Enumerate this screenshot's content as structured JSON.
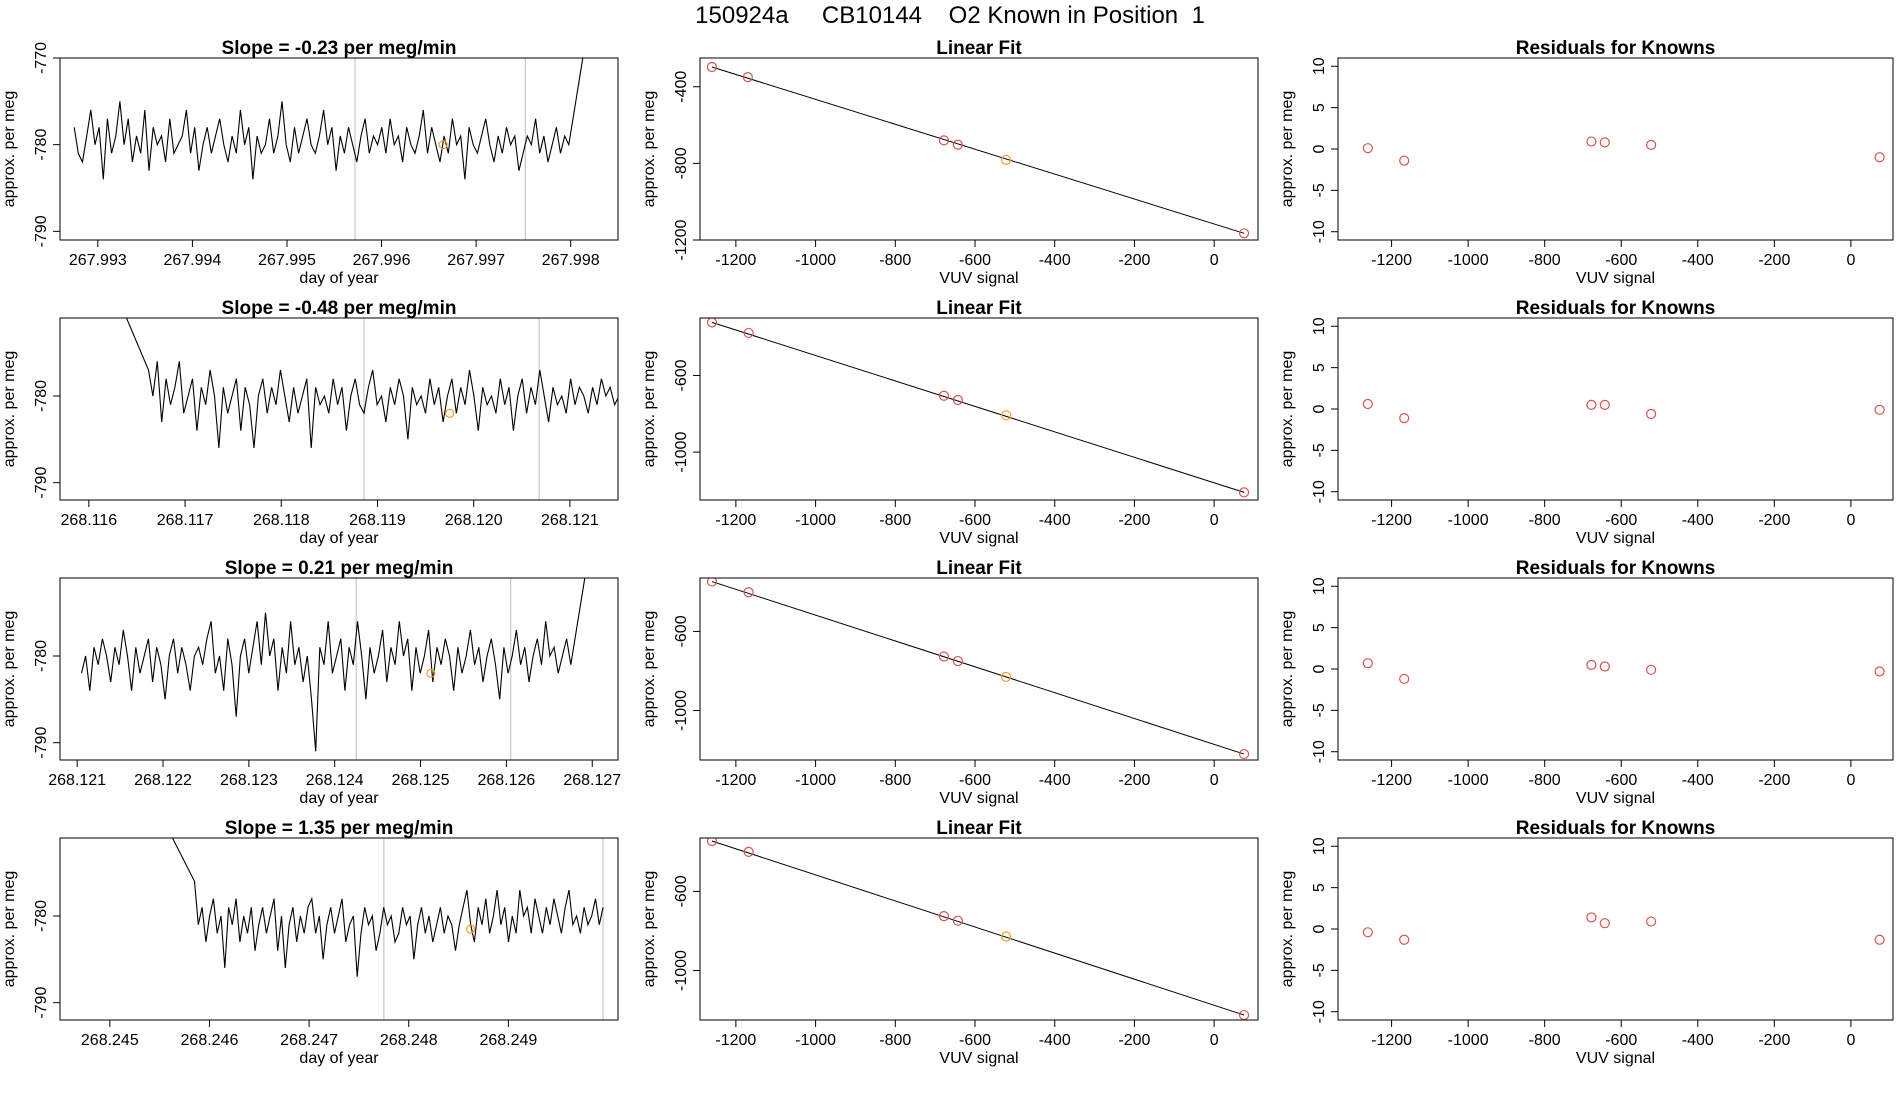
{
  "figure": {
    "title": "150924a     CB10144    O2 Known in Position  1",
    "colors": {
      "line": "#000000",
      "fit_point": "#d9534f",
      "highlight_point": "#f0a020",
      "vline": "#c8c8c8"
    }
  },
  "chart_data": [
    {
      "type": "line",
      "title": "Slope =  -0.23  per meg/min",
      "xlabel": "day of year",
      "ylabel": "approx. per meg",
      "xlim": [
        267.9926,
        267.9985
      ],
      "ylim": [
        -791,
        -770
      ],
      "xticks": [
        "267.993",
        "267.994",
        "267.995",
        "267.996",
        "267.997",
        "267.998"
      ],
      "yticks": [
        "-770",
        "-780",
        "-790"
      ],
      "series_start": 267.99275,
      "series_end": 267.99798,
      "series": [
        -778,
        -781,
        -782,
        -779,
        -776,
        -780,
        -778,
        -784,
        -777,
        -781,
        -779,
        -775,
        -780,
        -777,
        -782,
        -779,
        -781,
        -776,
        -783,
        -778,
        -780,
        -779,
        -782,
        -777,
        -781,
        -780,
        -779,
        -776,
        -781,
        -778,
        -783,
        -780,
        -778,
        -781,
        -779,
        -777,
        -780,
        -782,
        -779,
        -781,
        -776,
        -780,
        -778,
        -784,
        -779,
        -781,
        -780,
        -777,
        -781,
        -779,
        -775,
        -780,
        -782,
        -778,
        -781,
        -779,
        -777,
        -780,
        -781,
        -779,
        -776,
        -780,
        -778,
        -783,
        -779,
        -781,
        -778,
        -780,
        -782,
        -779,
        -777,
        -781,
        -779,
        -780,
        -778,
        -781,
        -777,
        -780,
        -779,
        -782,
        -778,
        -780,
        -781,
        -779,
        -776,
        -781,
        -778,
        -780,
        -782,
        -779,
        -781,
        -777,
        -780,
        -779,
        -784,
        -778,
        -780,
        -781,
        -779,
        -777,
        -780,
        -782,
        -779,
        -781,
        -778,
        -780,
        -779,
        -783,
        -781,
        -779,
        -780,
        -777,
        -781,
        -779,
        -782,
        -780,
        -778,
        -781,
        -779,
        -780
      ],
      "tail_end": -770,
      "vlines": [
        267.99572,
        267.99752
      ],
      "highlight": {
        "x": 267.99665,
        "y": -780
      }
    },
    {
      "type": "scatter",
      "title": "Linear Fit",
      "xlabel": "VUV signal",
      "ylabel": "approx. per meg",
      "xlim": [
        -1290,
        110
      ],
      "ylim": [
        -1200,
        -250
      ],
      "xticks": [
        "-1200",
        "-1000",
        "-800",
        "-600",
        "-400",
        "-200",
        "0"
      ],
      "yticks": [
        "-400",
        "-800",
        "-1200"
      ],
      "x": [
        -1260,
        -1170,
        -678,
        -643,
        -522,
        75
      ],
      "y": [
        -297,
        -350,
        -680,
        -703,
        -782,
        -1165
      ],
      "fit": [
        [
          -1260,
          -297
        ],
        [
          75,
          -1165
        ]
      ],
      "highlight_index": 4
    },
    {
      "type": "scatter",
      "title": "Residuals for Knowns",
      "xlabel": "VUV signal",
      "ylabel": "approx. per meg",
      "xlim": [
        -1340,
        110
      ],
      "ylim": [
        -11,
        11
      ],
      "xticks": [
        "-1200",
        "-1000",
        "-800",
        "-600",
        "-400",
        "-200",
        "0"
      ],
      "yticks": [
        "10",
        "5",
        "0",
        "-5",
        "-10"
      ],
      "x": [
        -1262,
        -1167,
        -678,
        -643,
        -522,
        75
      ],
      "y": [
        0.1,
        -1.4,
        0.9,
        0.8,
        0.5,
        -1.0
      ]
    },
    {
      "type": "line",
      "title": "Slope =  -0.48  per meg/min",
      "xlabel": "day of year",
      "ylabel": "approx. per meg",
      "xlim": [
        268.1157,
        268.1215
      ],
      "ylim": [
        -792,
        -771
      ],
      "xticks": [
        "268.116",
        "268.117",
        "268.118",
        "268.119",
        "268.120",
        "268.121"
      ],
      "yticks": [
        "-780",
        "-790"
      ],
      "series_start": 268.11662,
      "series_end": 268.12183,
      "tail_start": -771,
      "series": [
        -777,
        -780,
        -776,
        -783,
        -778,
        -781,
        -779,
        -776,
        -782,
        -780,
        -778,
        -784,
        -779,
        -781,
        -777,
        -780,
        -786,
        -779,
        -782,
        -780,
        -778,
        -784,
        -779,
        -781,
        -786,
        -780,
        -778,
        -782,
        -779,
        -781,
        -777,
        -780,
        -783,
        -779,
        -782,
        -780,
        -778,
        -786,
        -779,
        -781,
        -780,
        -782,
        -778,
        -781,
        -779,
        -784,
        -780,
        -778,
        -781,
        -782,
        -779,
        -777,
        -781,
        -780,
        -783,
        -779,
        -781,
        -778,
        -780,
        -785,
        -779,
        -781,
        -780,
        -782,
        -778,
        -781,
        -779,
        -783,
        -780,
        -778,
        -782,
        -779,
        -781,
        -777,
        -780,
        -784,
        -779,
        -781,
        -780,
        -782,
        -778,
        -781,
        -779,
        -784,
        -780,
        -778,
        -782,
        -779,
        -781,
        -777,
        -780,
        -783,
        -779,
        -781,
        -780,
        -782,
        -778,
        -781,
        -779,
        -780,
        -782,
        -779,
        -781,
        -778,
        -780,
        -779,
        -781,
        -780,
        -778,
        -781,
        -779,
        -780,
        -781,
        -779,
        -780
      ],
      "vlines": [
        268.11886,
        268.12068
      ],
      "highlight": {
        "x": 268.11975,
        "y": -782
      }
    },
    {
      "type": "scatter",
      "title": "Linear Fit",
      "xlabel": "VUV signal",
      "ylabel": "approx. per meg",
      "xlim": [
        -1290,
        110
      ],
      "ylim": [
        -1250,
        -300
      ],
      "xticks": [
        "-1200",
        "-1000",
        "-800",
        "-600",
        "-400",
        "-200",
        "0"
      ],
      "yticks": [
        "-600",
        "-1000"
      ],
      "x": [
        -1260,
        -1168,
        -678,
        -643,
        -522,
        75
      ],
      "y": [
        -323,
        -378,
        -706,
        -728,
        -808,
        -1210
      ],
      "fit": [
        [
          -1260,
          -323
        ],
        [
          75,
          -1210
        ]
      ],
      "highlight_index": 4
    },
    {
      "type": "scatter",
      "title": "Residuals for Knowns",
      "xlabel": "VUV signal",
      "ylabel": "approx. per meg",
      "xlim": [
        -1340,
        110
      ],
      "ylim": [
        -11,
        11
      ],
      "xticks": [
        "-1200",
        "-1000",
        "-800",
        "-600",
        "-400",
        "-200",
        "0"
      ],
      "yticks": [
        "10",
        "5",
        "0",
        "-5",
        "-10"
      ],
      "x": [
        -1262,
        -1167,
        -678,
        -643,
        -522,
        75
      ],
      "y": [
        0.6,
        -1.1,
        0.5,
        0.5,
        -0.6,
        -0.1
      ]
    },
    {
      "type": "line",
      "title": "Slope =  0.21  per meg/min",
      "xlabel": "day of year",
      "ylabel": "approx. per meg",
      "xlim": [
        268.1208,
        268.1273
      ],
      "ylim": [
        -792,
        -771
      ],
      "xticks": [
        "268.121",
        "268.122",
        "268.123",
        "268.124",
        "268.125",
        "268.126",
        "268.127"
      ],
      "yticks": [
        "-780",
        "-790"
      ],
      "series_start": 268.12105,
      "series_end": 268.12675,
      "tail_end": -771,
      "series": [
        -782,
        -780,
        -784,
        -779,
        -781,
        -778,
        -780,
        -783,
        -779,
        -781,
        -777,
        -780,
        -784,
        -779,
        -782,
        -780,
        -778,
        -783,
        -779,
        -781,
        -785,
        -780,
        -778,
        -782,
        -779,
        -781,
        -784,
        -780,
        -779,
        -781,
        -778,
        -776,
        -782,
        -780,
        -784,
        -778,
        -781,
        -787,
        -780,
        -778,
        -782,
        -779,
        -776,
        -781,
        -775,
        -780,
        -778,
        -784,
        -779,
        -782,
        -776,
        -781,
        -779,
        -783,
        -780,
        -785,
        -791,
        -779,
        -781,
        -776,
        -782,
        -780,
        -778,
        -784,
        -779,
        -781,
        -776,
        -780,
        -785,
        -779,
        -782,
        -780,
        -777,
        -783,
        -779,
        -781,
        -776,
        -780,
        -778,
        -784,
        -779,
        -782,
        -780,
        -777,
        -783,
        -779,
        -781,
        -778,
        -780,
        -784,
        -779,
        -782,
        -780,
        -777,
        -781,
        -779,
        -783,
        -780,
        -778,
        -781,
        -785,
        -779,
        -782,
        -780,
        -777,
        -781,
        -779,
        -783,
        -780,
        -778,
        -781,
        -776,
        -780,
        -779,
        -782,
        -780,
        -778,
        -781
      ],
      "vlines": [
        268.12425,
        268.12605
      ],
      "highlight": {
        "x": 268.12512,
        "y": -782
      }
    },
    {
      "type": "scatter",
      "title": "Linear Fit",
      "xlabel": "VUV signal",
      "ylabel": "approx. per meg",
      "xlim": [
        -1290,
        110
      ],
      "ylim": [
        -1250,
        -330
      ],
      "xticks": [
        "-1200",
        "-1000",
        "-800",
        "-600",
        "-400",
        "-200",
        "0"
      ],
      "yticks": [
        "-600",
        "-1000"
      ],
      "x": [
        -1260,
        -1168,
        -678,
        -643,
        -522,
        75
      ],
      "y": [
        -348,
        -402,
        -727,
        -750,
        -830,
        -1220
      ],
      "fit": [
        [
          -1260,
          -348
        ],
        [
          75,
          -1220
        ]
      ],
      "highlight_index": 4
    },
    {
      "type": "scatter",
      "title": "Residuals for Knowns",
      "xlabel": "VUV signal",
      "ylabel": "approx. per meg",
      "xlim": [
        -1340,
        110
      ],
      "ylim": [
        -11,
        11
      ],
      "xticks": [
        "-1200",
        "-1000",
        "-800",
        "-600",
        "-400",
        "-200",
        "0"
      ],
      "yticks": [
        "10",
        "5",
        "0",
        "-5",
        "-10"
      ],
      "x": [
        -1262,
        -1167,
        -678,
        -643,
        -522,
        75
      ],
      "y": [
        0.7,
        -1.2,
        0.5,
        0.3,
        -0.1,
        -0.3
      ]
    },
    {
      "type": "line",
      "title": "Slope =  1.35  per meg/min",
      "xlabel": "day of year",
      "ylabel": "approx. per meg",
      "xlim": [
        268.2445,
        268.2501
      ],
      "ylim": [
        -792,
        -771
      ],
      "xticks": [
        "268.245",
        "268.246",
        "268.247",
        "268.248",
        "268.249"
      ],
      "yticks": [
        "-780",
        "-790"
      ],
      "series_start": 268.24585,
      "series_end": 268.24995,
      "tail_start": -771,
      "series": [
        -776,
        -781,
        -779,
        -783,
        -780,
        -778,
        -782,
        -780,
        -786,
        -779,
        -781,
        -778,
        -783,
        -780,
        -782,
        -779,
        -784,
        -781,
        -779,
        -782,
        -780,
        -778,
        -784,
        -780,
        -786,
        -781,
        -779,
        -783,
        -780,
        -782,
        -779,
        -778,
        -782,
        -780,
        -785,
        -781,
        -779,
        -782,
        -780,
        -778,
        -783,
        -781,
        -780,
        -787,
        -782,
        -779,
        -781,
        -780,
        -784,
        -782,
        -779,
        -781,
        -780,
        -783,
        -782,
        -779,
        -781,
        -780,
        -785,
        -781,
        -779,
        -782,
        -780,
        -783,
        -781,
        -779,
        -782,
        -780,
        -781,
        -784,
        -781,
        -779,
        -777,
        -781,
        -783,
        -779,
        -781,
        -778,
        -782,
        -780,
        -777,
        -781,
        -779,
        -783,
        -780,
        -782,
        -777,
        -780,
        -779,
        -782,
        -778,
        -780,
        -782,
        -779,
        -781,
        -778,
        -780,
        -782,
        -779,
        -777,
        -781,
        -780,
        -782,
        -779,
        -781,
        -780,
        -778,
        -781,
        -779
      ],
      "vlines": [
        268.24775,
        268.24995
      ],
      "highlight": {
        "x": 268.24862,
        "y": -781.5
      }
    },
    {
      "type": "scatter",
      "title": "Linear Fit",
      "xlabel": "VUV signal",
      "ylabel": "approx. per meg",
      "xlim": [
        -1290,
        110
      ],
      "ylim": [
        -1250,
        -330
      ],
      "xticks": [
        "-1200",
        "-1000",
        "-800",
        "-600",
        "-400",
        "-200",
        "0"
      ],
      "yticks": [
        "-600",
        "-1000"
      ],
      "x": [
        -1260,
        -1168,
        -678,
        -643,
        -522,
        75
      ],
      "y": [
        -345,
        -400,
        -725,
        -748,
        -828,
        -1225
      ],
      "fit": [
        [
          -1260,
          -345
        ],
        [
          75,
          -1225
        ]
      ],
      "highlight_index": 4
    },
    {
      "type": "scatter",
      "title": "Residuals for Knowns",
      "xlabel": "VUV signal",
      "ylabel": "approx. per meg",
      "xlim": [
        -1340,
        110
      ],
      "ylim": [
        -11,
        11
      ],
      "xticks": [
        "-1200",
        "-1000",
        "-800",
        "-600",
        "-400",
        "-200",
        "0"
      ],
      "yticks": [
        "10",
        "5",
        "0",
        "-5",
        "-10"
      ],
      "x": [
        -1262,
        -1167,
        -678,
        -643,
        -522,
        75
      ],
      "y": [
        -0.4,
        -1.3,
        1.4,
        0.7,
        0.9,
        -1.3
      ]
    }
  ]
}
